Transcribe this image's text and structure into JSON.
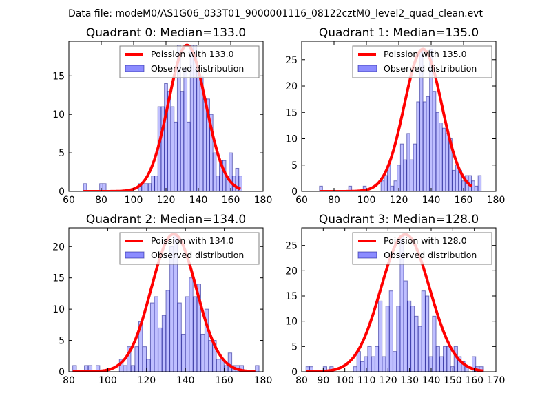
{
  "figure": {
    "suptitle": "Data file: modeM0/AS1G06_033T01_9000001116_08122cztM0_level2_quad_clean.evt",
    "colors": {
      "bar_fill": "#7f7fff",
      "bar_edge": "#00007f",
      "curve": "#ff0000",
      "frame": "#000000"
    }
  },
  "chart_data": [
    {
      "type": "bar",
      "title": "Quadrant 0: Median=133.0",
      "xlim": [
        60,
        180
      ],
      "ylim": [
        0,
        19.5
      ],
      "xticks": [
        60,
        80,
        100,
        120,
        140,
        160,
        180
      ],
      "yticks": [
        0,
        5,
        10,
        15
      ],
      "grid": false,
      "legend": {
        "position": "top-right",
        "entries": [
          "Poission with 133.0",
          "Observed distribution"
        ]
      },
      "bin_width": 2,
      "bins": [
        [
          69,
          1
        ],
        [
          79,
          1
        ],
        [
          81,
          1
        ],
        [
          103,
          1
        ],
        [
          105,
          1
        ],
        [
          107,
          1
        ],
        [
          109,
          1
        ],
        [
          111,
          2
        ],
        [
          113,
          2
        ],
        [
          115,
          11
        ],
        [
          117,
          11
        ],
        [
          119,
          14
        ],
        [
          121,
          13
        ],
        [
          123,
          11
        ],
        [
          125,
          9
        ],
        [
          127,
          19
        ],
        [
          129,
          13
        ],
        [
          131,
          16
        ],
        [
          133,
          9
        ],
        [
          135,
          19
        ],
        [
          137,
          19
        ],
        [
          139,
          16
        ],
        [
          141,
          15
        ],
        [
          143,
          12
        ],
        [
          145,
          12
        ],
        [
          147,
          10
        ],
        [
          149,
          5
        ],
        [
          151,
          2
        ],
        [
          153,
          4
        ],
        [
          155,
          4
        ],
        [
          157,
          2
        ],
        [
          159,
          5
        ],
        [
          161,
          2
        ],
        [
          163,
          3
        ],
        [
          165,
          2
        ]
      ],
      "curve": {
        "label": "Poission with 133.0",
        "mean": 133.0,
        "peak": 19.0,
        "xrange": [
          69,
          166
        ]
      }
    },
    {
      "type": "bar",
      "title": "Quadrant 1: Median=135.0",
      "xlim": [
        60,
        180
      ],
      "ylim": [
        0,
        28.5
      ],
      "xticks": [
        60,
        80,
        100,
        120,
        140,
        160,
        180
      ],
      "yticks": [
        0,
        5,
        10,
        15,
        20,
        25
      ],
      "grid": false,
      "legend": {
        "position": "top-right",
        "entries": [
          "Poission with 135.0",
          "Observed distribution"
        ]
      },
      "bin_width": 1.9,
      "bins": [
        [
          71,
          1
        ],
        [
          89,
          1
        ],
        [
          98,
          1
        ],
        [
          109,
          2
        ],
        [
          111,
          3
        ],
        [
          113,
          5
        ],
        [
          115,
          1
        ],
        [
          117,
          2
        ],
        [
          119,
          5
        ],
        [
          121,
          9
        ],
        [
          123,
          6
        ],
        [
          125,
          11
        ],
        [
          127,
          6
        ],
        [
          129,
          9
        ],
        [
          131,
          17
        ],
        [
          133,
          27
        ],
        [
          135,
          17
        ],
        [
          137,
          18
        ],
        [
          139,
          27
        ],
        [
          141,
          19
        ],
        [
          143,
          15
        ],
        [
          145,
          13
        ],
        [
          147,
          12
        ],
        [
          149,
          11
        ],
        [
          151,
          10
        ],
        [
          153,
          4
        ],
        [
          155,
          5
        ],
        [
          157,
          4
        ],
        [
          159,
          2
        ],
        [
          161,
          3
        ],
        [
          163,
          3
        ],
        [
          165,
          2
        ],
        [
          167,
          1
        ],
        [
          169,
          3
        ]
      ],
      "curve": {
        "label": "Poission with 135.0",
        "mean": 135.0,
        "peak": 27.0,
        "xrange": [
          71,
          165
        ]
      }
    },
    {
      "type": "bar",
      "title": "Quadrant 2: Median=134.0",
      "xlim": [
        80,
        180
      ],
      "ylim": [
        0,
        23
      ],
      "xticks": [
        80,
        100,
        120,
        140,
        160,
        180
      ],
      "yticks": [
        0,
        5,
        10,
        15,
        20
      ],
      "grid": false,
      "legend": {
        "position": "top-right",
        "entries": [
          "Poission with 134.0",
          "Observed distribution"
        ]
      },
      "bin_width": 1.9,
      "bins": [
        [
          82,
          1
        ],
        [
          88,
          1
        ],
        [
          90,
          1
        ],
        [
          94,
          1
        ],
        [
          106,
          2
        ],
        [
          108,
          1
        ],
        [
          110,
          4
        ],
        [
          112,
          1
        ],
        [
          114,
          4
        ],
        [
          116,
          8
        ],
        [
          118,
          4
        ],
        [
          120,
          2
        ],
        [
          122,
          11
        ],
        [
          124,
          12
        ],
        [
          126,
          7
        ],
        [
          128,
          9
        ],
        [
          130,
          13
        ],
        [
          132,
          20
        ],
        [
          134,
          22
        ],
        [
          136,
          11
        ],
        [
          138,
          6
        ],
        [
          140,
          12
        ],
        [
          142,
          15
        ],
        [
          144,
          12
        ],
        [
          146,
          14
        ],
        [
          148,
          6
        ],
        [
          150,
          10
        ],
        [
          152,
          5
        ],
        [
          154,
          5
        ],
        [
          156,
          2
        ],
        [
          158,
          2
        ],
        [
          160,
          1
        ],
        [
          162,
          3
        ],
        [
          164,
          1
        ],
        [
          166,
          1
        ],
        [
          168,
          1
        ],
        [
          176,
          1
        ]
      ],
      "curve": {
        "label": "Poission with 134.0",
        "mean": 134.0,
        "peak": 22.0,
        "xrange": [
          82,
          176
        ]
      }
    },
    {
      "type": "bar",
      "title": "Quadrant 3: Median=128.0",
      "xlim": [
        80,
        170
      ],
      "ylim": [
        0,
        28.5
      ],
      "xticks": [
        80,
        90,
        100,
        110,
        120,
        130,
        140,
        150,
        160,
        170
      ],
      "yticks": [
        0,
        5,
        10,
        15,
        20,
        25
      ],
      "grid": false,
      "legend": {
        "position": "top-right",
        "entries": [
          "Poission with 128.0",
          "Observed distribution"
        ]
      },
      "bin_width": 1.65,
      "bins": [
        [
          82,
          1
        ],
        [
          83.6,
          1
        ],
        [
          90,
          1
        ],
        [
          93,
          1
        ],
        [
          104,
          1
        ],
        [
          105.6,
          4
        ],
        [
          107.3,
          2
        ],
        [
          109,
          3
        ],
        [
          110.6,
          5
        ],
        [
          112.3,
          3
        ],
        [
          114,
          5
        ],
        [
          115.6,
          14
        ],
        [
          117.3,
          3
        ],
        [
          119,
          13
        ],
        [
          120.6,
          16
        ],
        [
          122.3,
          4
        ],
        [
          124,
          13
        ],
        [
          125.6,
          27
        ],
        [
          127.3,
          18
        ],
        [
          129,
          14
        ],
        [
          130.6,
          13
        ],
        [
          132.3,
          11
        ],
        [
          134,
          9
        ],
        [
          135.6,
          16
        ],
        [
          137.3,
          15
        ],
        [
          139,
          3
        ],
        [
          140.6,
          11
        ],
        [
          142.3,
          5
        ],
        [
          144,
          3
        ],
        [
          145.6,
          5
        ],
        [
          147.3,
          5
        ],
        [
          149,
          1
        ],
        [
          150.6,
          5
        ],
        [
          152.3,
          3
        ],
        [
          154,
          2
        ],
        [
          155.6,
          1
        ],
        [
          159,
          3
        ],
        [
          160.6,
          1
        ],
        [
          162.3,
          1
        ]
      ],
      "curve": {
        "label": "Poission with 128.0",
        "mean": 128.0,
        "peak": 27.2,
        "xrange": [
          82,
          164
        ]
      }
    }
  ]
}
